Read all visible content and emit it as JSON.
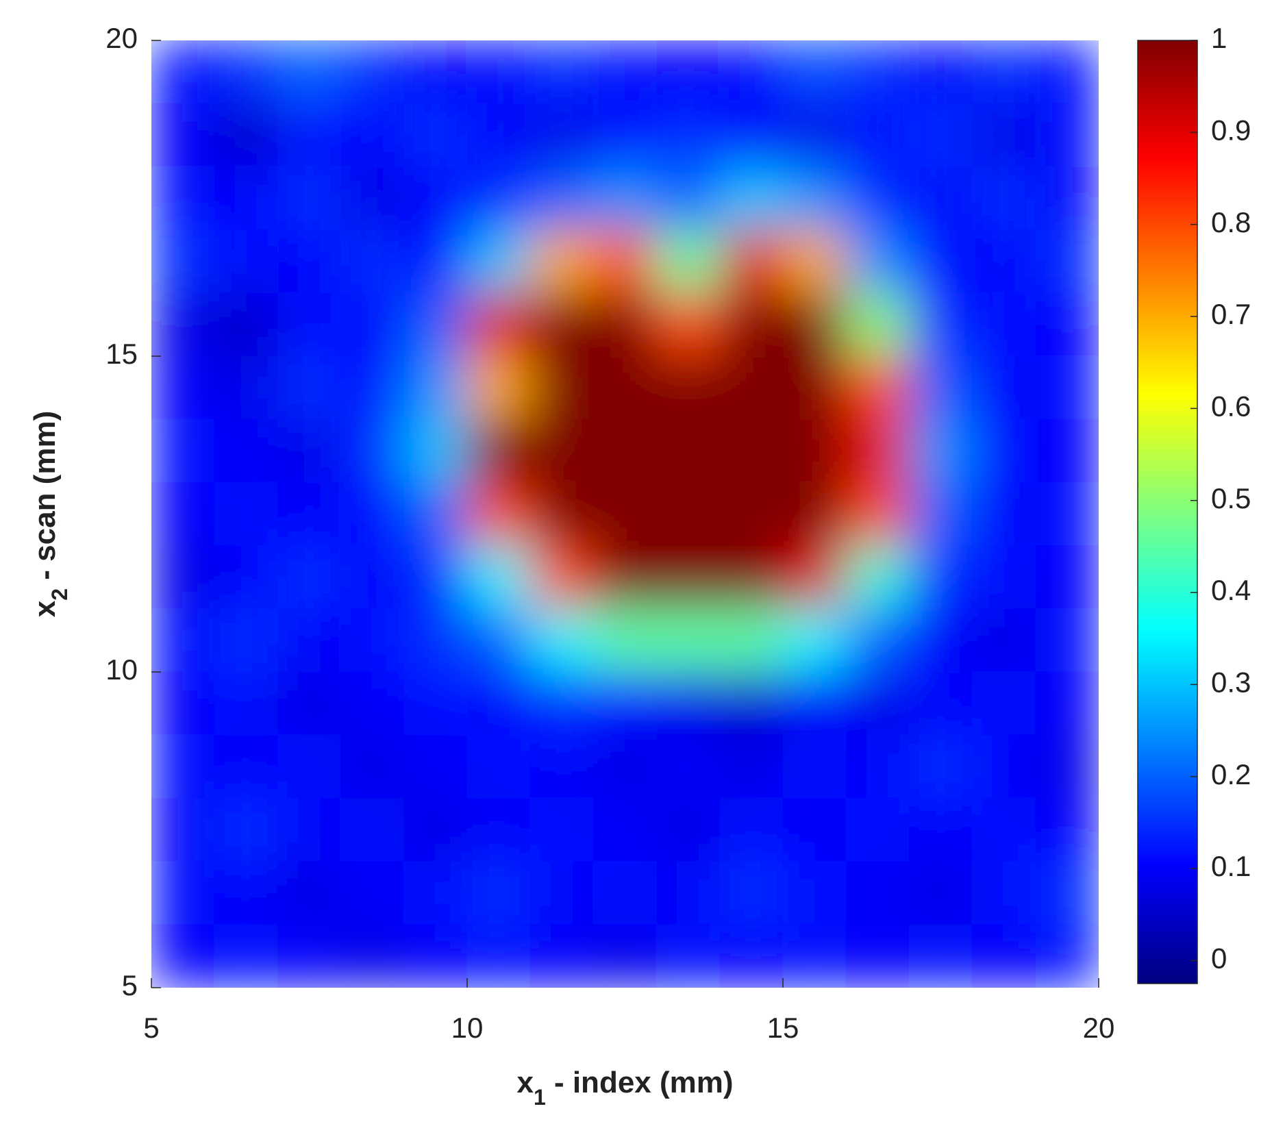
{
  "chart_data": {
    "type": "heatmap",
    "xlabel": [
      "x",
      "1",
      " - index (mm)"
    ],
    "ylabel": [
      "x",
      "2",
      " - scan (mm)"
    ],
    "xlim": [
      5,
      20
    ],
    "ylim": [
      5,
      20
    ],
    "xticks": [
      5,
      10,
      15,
      20
    ],
    "yticks": [
      5,
      10,
      15,
      20
    ],
    "colormap": "jet",
    "clim": [
      -0.025,
      1
    ],
    "cticks": [
      0,
      0.1,
      0.2,
      0.3,
      0.4,
      0.5,
      0.6,
      0.7,
      0.8,
      0.9,
      1
    ],
    "x": [
      5.5,
      6.5,
      7.5,
      8.5,
      9.5,
      10.5,
      11.5,
      12.5,
      13.5,
      14.5,
      15.5,
      16.5,
      17.5,
      18.5,
      19.5
    ],
    "y": [
      19.5,
      18.5,
      17.5,
      16.5,
      15.5,
      14.5,
      13.5,
      12.5,
      11.5,
      10.5,
      9.5,
      8.5,
      7.5,
      6.5,
      5.5
    ],
    "z": [
      [
        0.12,
        0.15,
        0.2,
        0.15,
        0.1,
        0.12,
        0.15,
        0.12,
        0.1,
        0.12,
        0.18,
        0.15,
        0.1,
        0.15,
        0.12
      ],
      [
        0.1,
        0.05,
        0.12,
        0.1,
        0.15,
        0.1,
        0.08,
        0.12,
        0.15,
        0.1,
        0.08,
        0.12,
        0.15,
        0.08,
        0.12
      ],
      [
        0.12,
        0.1,
        0.15,
        0.08,
        0.1,
        0.15,
        0.2,
        0.25,
        0.2,
        0.3,
        0.25,
        0.15,
        0.1,
        0.15,
        0.1
      ],
      [
        0.15,
        0.12,
        0.1,
        0.15,
        0.12,
        0.3,
        0.7,
        0.8,
        0.45,
        0.9,
        0.7,
        0.25,
        0.12,
        0.1,
        0.15
      ],
      [
        0.08,
        0.05,
        0.12,
        0.1,
        0.2,
        0.9,
        1,
        1,
        0.8,
        1,
        1,
        0.5,
        0.15,
        0.12,
        0.1
      ],
      [
        0.1,
        0.08,
        0.15,
        0.12,
        0.25,
        0.7,
        1,
        1,
        1,
        1,
        1,
        0.8,
        0.2,
        0.1,
        0.12
      ],
      [
        0.12,
        0.1,
        0.08,
        0.15,
        0.3,
        1,
        1,
        1,
        1,
        1,
        1,
        0.9,
        0.25,
        0.12,
        0.1
      ],
      [
        0.1,
        0.12,
        0.1,
        0.12,
        0.2,
        0.8,
        1,
        1,
        1,
        1,
        1,
        0.8,
        0.2,
        0.1,
        0.12
      ],
      [
        0.08,
        0.1,
        0.15,
        0.1,
        0.15,
        0.35,
        0.8,
        1,
        1,
        1,
        0.9,
        0.4,
        0.15,
        0.12,
        0.1
      ],
      [
        0.12,
        0.15,
        0.1,
        0.12,
        0.15,
        0.2,
        0.35,
        0.45,
        0.45,
        0.45,
        0.35,
        0.2,
        0.1,
        0.08,
        0.12
      ],
      [
        0.1,
        0.12,
        0.08,
        0.1,
        0.12,
        0.1,
        0.15,
        0.12,
        0.08,
        0.05,
        0.1,
        0.08,
        0.1,
        0.12,
        0.1
      ],
      [
        0.12,
        0.1,
        0.12,
        0.08,
        0.1,
        0.12,
        0.1,
        0.08,
        0.1,
        0.08,
        0.12,
        0.1,
        0.15,
        0.1,
        0.08
      ],
      [
        0.1,
        0.15,
        0.1,
        0.12,
        0.08,
        0.1,
        0.12,
        0.1,
        0.08,
        0.12,
        0.1,
        0.12,
        0.1,
        0.12,
        0.1
      ],
      [
        0.12,
        0.1,
        0.08,
        0.1,
        0.12,
        0.15,
        0.1,
        0.12,
        0.1,
        0.15,
        0.12,
        0.1,
        0.08,
        0.12,
        0.15
      ],
      [
        0.1,
        0.12,
        0.1,
        0.08,
        0.1,
        0.12,
        0.1,
        0.08,
        0.12,
        0.1,
        0.12,
        0.1,
        0.12,
        0.1,
        0.12
      ]
    ]
  }
}
